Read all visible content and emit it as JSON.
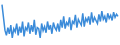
{
  "chart_data": {
    "type": "line",
    "values": [
      95,
      70,
      45,
      35,
      50,
      38,
      55,
      30,
      48,
      42,
      58,
      35,
      52,
      40,
      62,
      33,
      50,
      45,
      60,
      38,
      55,
      42,
      65,
      36,
      50,
      48,
      30,
      58,
      44,
      52,
      40,
      62,
      46,
      55,
      38,
      60,
      50,
      45,
      58,
      42,
      65,
      50,
      72,
      48,
      60,
      55,
      70,
      45,
      62,
      58,
      75,
      50,
      66,
      60,
      55,
      78,
      52,
      68,
      62,
      72,
      56,
      80,
      60,
      70,
      64,
      58,
      76,
      62,
      82,
      66,
      72,
      60,
      78,
      68,
      74,
      64,
      80,
      70,
      76,
      72
    ],
    "color": "#3b8bd9",
    "ylim": [
      20,
      100
    ],
    "grid": false,
    "tick_labels": false
  }
}
